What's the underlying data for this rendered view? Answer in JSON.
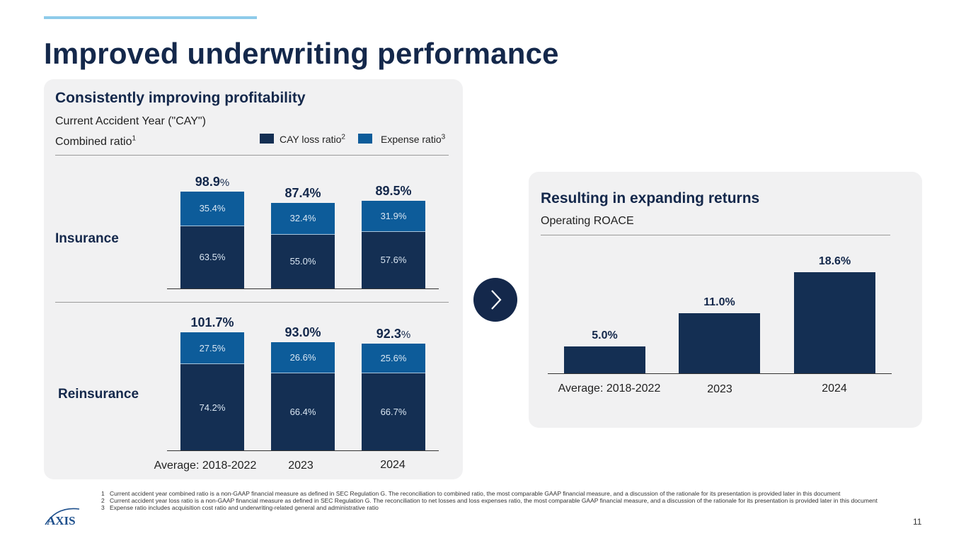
{
  "page": {
    "title": "Improved underwriting performance",
    "page_number": "11",
    "logo_text": "AXIS"
  },
  "left_panel": {
    "title": "Consistently improving profitability",
    "subtitle1": "Current Accident Year (\"CAY\")",
    "subtitle2": "Combined ratio",
    "subtitle2_sup": "1",
    "legend": [
      {
        "label": "CAY loss ratio",
        "sup": "2",
        "color": "#142f53"
      },
      {
        "label": "Expense ratio",
        "sup": "3",
        "color": "#0d5c9a"
      }
    ],
    "row_labels": [
      "Insurance",
      "Reinsurance"
    ]
  },
  "right_panel": {
    "title": "Resulting in expanding returns",
    "subtitle": "Operating ROACE"
  },
  "chart_data": [
    {
      "type": "bar",
      "stacked": true,
      "title": "Insurance",
      "categories": [
        "Average: 2018-2022",
        "2023",
        "2024"
      ],
      "series": [
        {
          "name": "CAY loss ratio",
          "values": [
            63.5,
            55.0,
            57.6
          ],
          "labels": [
            "63.5%",
            "55.0%",
            "57.6%"
          ]
        },
        {
          "name": "Expense ratio",
          "values": [
            35.4,
            32.4,
            31.9
          ],
          "labels": [
            "35.4%",
            "32.4%",
            "31.9%"
          ]
        }
      ],
      "totals": [
        {
          "num": "98.9",
          "pct": "%"
        },
        {
          "num": "87.4%",
          "pct": ""
        },
        {
          "num": "89.5%",
          "pct": ""
        }
      ]
    },
    {
      "type": "bar",
      "stacked": true,
      "title": "Reinsurance",
      "categories": [
        "Average: 2018-2022",
        "2023",
        "2024"
      ],
      "series": [
        {
          "name": "CAY loss ratio",
          "values": [
            74.2,
            66.4,
            66.7
          ],
          "labels": [
            "74.2%",
            "66.4%",
            "66.7%"
          ]
        },
        {
          "name": "Expense ratio",
          "values": [
            27.5,
            26.6,
            25.6
          ],
          "labels": [
            "27.5%",
            "26.6%",
            "25.6%"
          ]
        }
      ],
      "totals": [
        {
          "num": "101.7%",
          "pct": ""
        },
        {
          "num": "93.0%",
          "pct": ""
        },
        {
          "num": "92.3",
          "pct": "%"
        }
      ]
    },
    {
      "type": "bar",
      "title": "Operating ROACE",
      "categories": [
        "Average: 2018-2022",
        "2023",
        "2024"
      ],
      "values": [
        5.0,
        11.0,
        18.6
      ],
      "labels": [
        "5.0%",
        "11.0%",
        "18.6%"
      ]
    }
  ],
  "footnotes": [
    {
      "num": "1",
      "text": "Current accident year combined ratio is a non-GAAP financial measure as defined in SEC Regulation G. The reconciliation to combined ratio, the most comparable GAAP financial measure, and a discussion of the rationale for its presentation is provided later in this document"
    },
    {
      "num": "2",
      "text": "Current accident year loss ratio is a non-GAAP financial measure as defined in SEC Regulation G. The reconciliation to net losses and loss expenses ratio, the most comparable GAAP financial measure, and a discussion of the rationale for its presentation is provided later in this document"
    },
    {
      "num": "3",
      "text": "Expense ratio includes acquisition cost ratio and underwriting-related general and administrative ratio"
    }
  ]
}
